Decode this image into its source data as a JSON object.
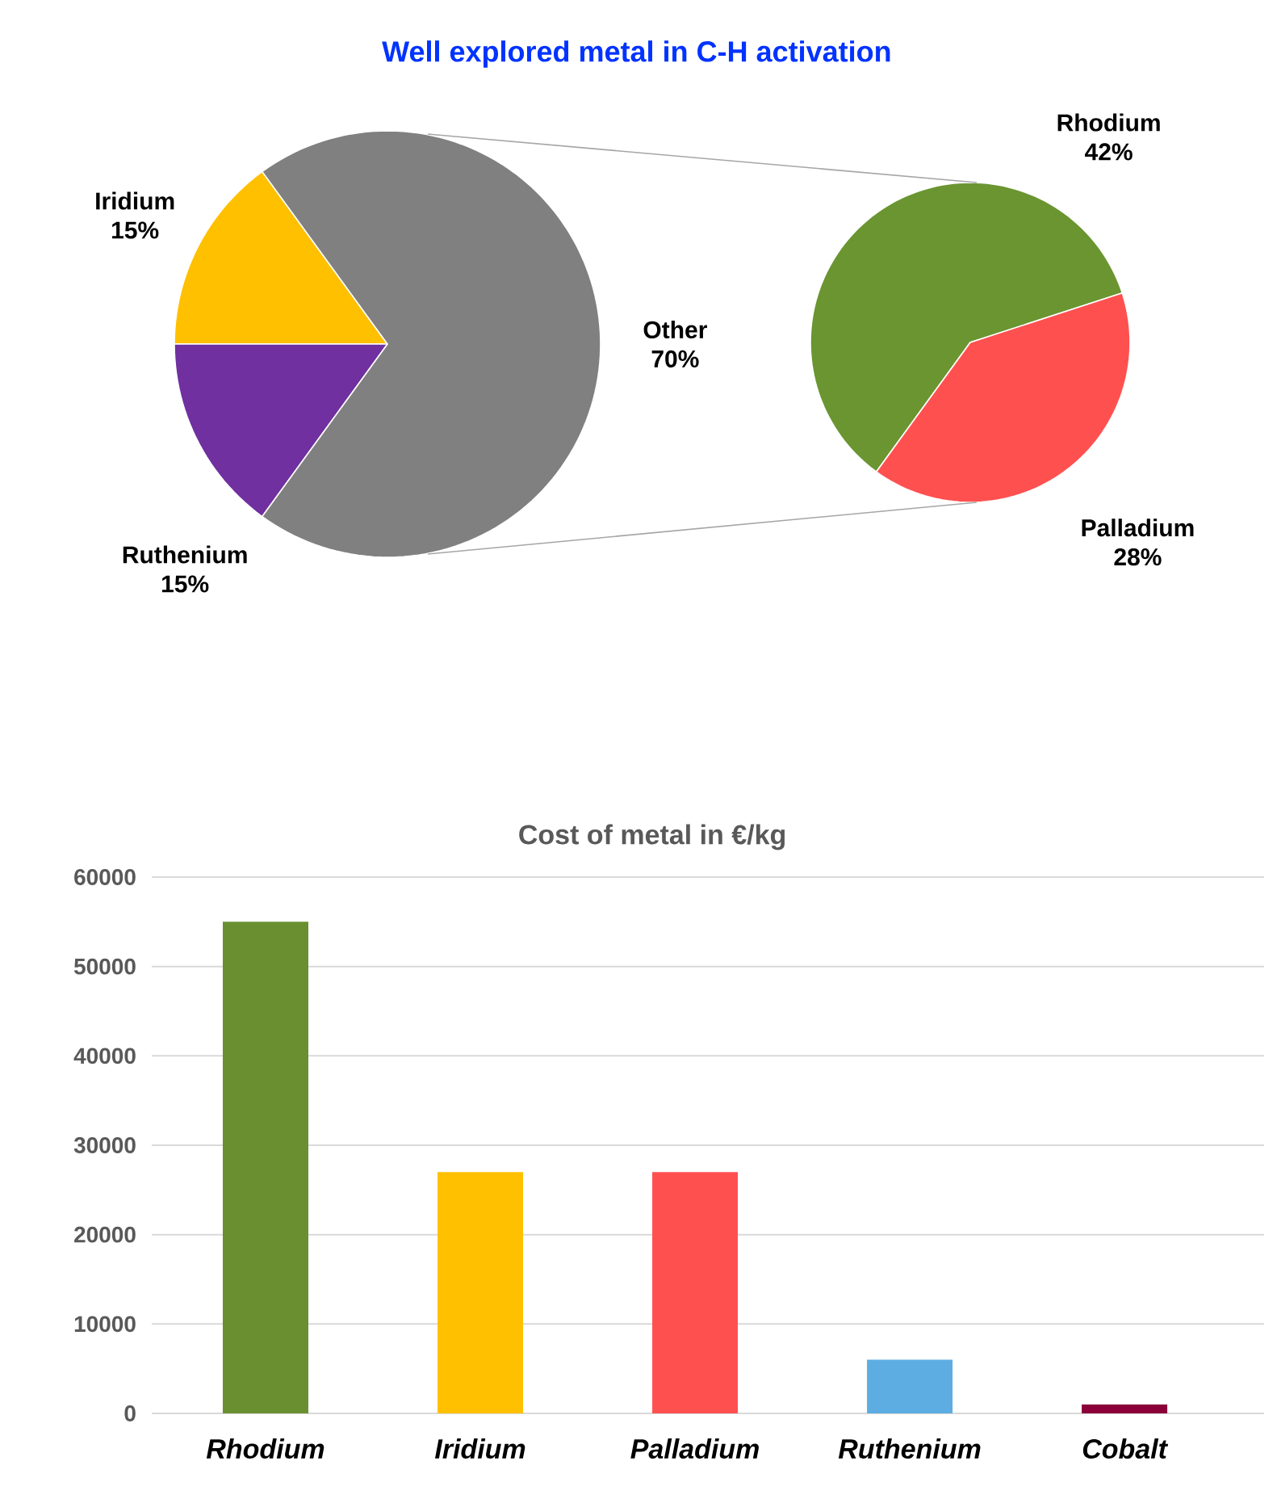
{
  "chart_data": [
    {
      "type": "pie",
      "title": "Well explored metal in C-H activation",
      "categories": [
        "Iridium",
        "Ruthenium",
        "Other"
      ],
      "values": [
        15,
        15,
        70
      ],
      "value_labels": [
        "15%",
        "15%",
        "70%"
      ],
      "colors": [
        "#ffc000",
        "#7030a0",
        "#808080"
      ]
    },
    {
      "type": "pie",
      "categories": [
        "Rhodium",
        "Palladium"
      ],
      "values": [
        42,
        28
      ],
      "value_labels": [
        "42%",
        "28%"
      ],
      "colors": [
        "#6a9530",
        "#ff5050"
      ]
    },
    {
      "type": "bar",
      "title": "Cost of metal in €/kg",
      "categories": [
        "Rhodium",
        "Iridium",
        "Palladium",
        "Ruthenium",
        "Cobalt"
      ],
      "values": [
        55000,
        27000,
        27000,
        6000,
        1000
      ],
      "colors": [
        "#6a8f30",
        "#ffc000",
        "#ff5050",
        "#5dade2",
        "#8b0038"
      ],
      "ylim": [
        0,
        60000
      ],
      "yticks": [
        0,
        10000,
        20000,
        30000,
        40000,
        50000,
        60000
      ],
      "grid": "y"
    }
  ]
}
